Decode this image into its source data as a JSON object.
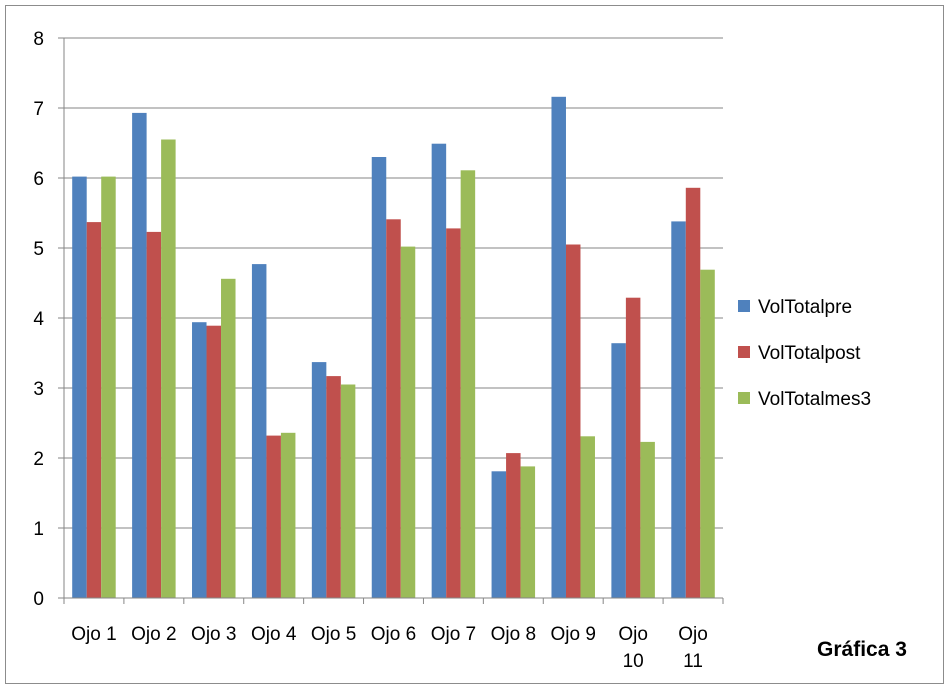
{
  "chart_data": {
    "type": "bar",
    "categories": [
      "Ojo 1",
      "Ojo 2",
      "Ojo 3",
      "Ojo 4",
      "Ojo 5",
      "Ojo 6",
      "Ojo 7",
      "Ojo 8",
      "Ojo 9",
      "Ojo 10",
      "Ojo 11"
    ],
    "series": [
      {
        "name": "VolTotalpre",
        "color": "#4f81bd",
        "values": [
          6.02,
          6.93,
          3.94,
          4.77,
          3.37,
          6.3,
          6.49,
          1.81,
          7.16,
          3.64,
          5.38
        ]
      },
      {
        "name": "VolTotalpost",
        "color": "#c0504d",
        "values": [
          5.37,
          5.23,
          3.89,
          2.32,
          3.17,
          5.41,
          5.28,
          2.07,
          5.05,
          4.29,
          5.86
        ]
      },
      {
        "name": "VolTotalmes3",
        "color": "#9bbb59",
        "values": [
          6.02,
          6.55,
          4.56,
          2.36,
          3.05,
          5.02,
          6.11,
          1.88,
          2.31,
          2.23,
          4.69
        ]
      }
    ],
    "y_ticks": [
      "0",
      "1",
      "2",
      "3",
      "4",
      "5",
      "6",
      "7",
      "8"
    ],
    "ylim": [
      0,
      8
    ],
    "grid": true,
    "legend_position": "right",
    "title": "",
    "xlabel": "",
    "ylabel": ""
  },
  "caption": "Gráfica 3"
}
